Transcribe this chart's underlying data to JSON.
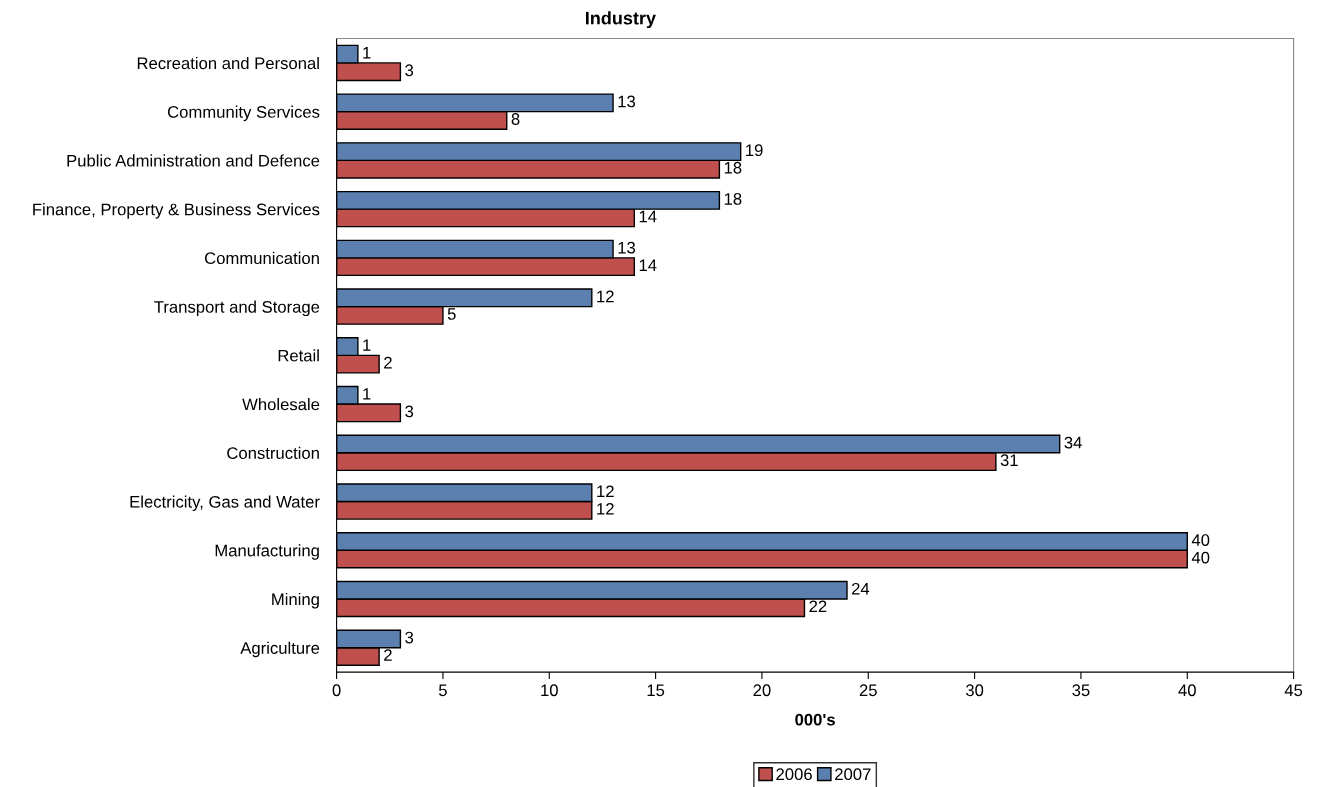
{
  "chart_data": {
    "type": "bar",
    "orientation": "horizontal",
    "title": "Industry",
    "xlabel": "000's",
    "categories": [
      "Recreation and Personal",
      "Community Services",
      "Public Administration and Defence",
      "Finance, Property & Business Services",
      "Communication",
      "Transport and Storage",
      "Retail",
      "Wholesale",
      "Construction",
      "Electricity, Gas and Water",
      "Manufacturing",
      "Mining",
      "Agriculture"
    ],
    "series": [
      {
        "name": "2006",
        "color": "#c0504d",
        "values": [
          3,
          8,
          18,
          14,
          14,
          5,
          2,
          3,
          31,
          12,
          40,
          22,
          2
        ]
      },
      {
        "name": "2007",
        "color": "#5b80b0",
        "values": [
          1,
          13,
          19,
          18,
          13,
          12,
          1,
          1,
          34,
          12,
          40,
          24,
          3
        ]
      }
    ],
    "xlim": [
      0,
      45
    ],
    "xticks": [
      0,
      5,
      10,
      15,
      20,
      25,
      30,
      35,
      40,
      45
    ],
    "data_labels": true,
    "grid": false,
    "legend": "bottom"
  }
}
